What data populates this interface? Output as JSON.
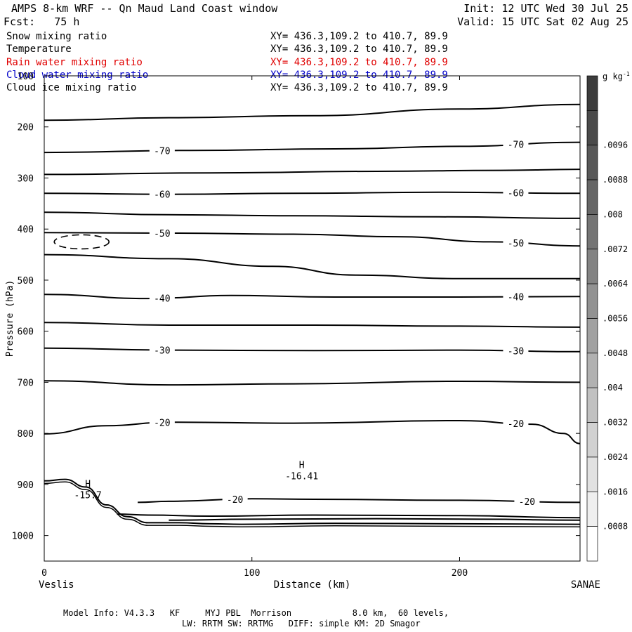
{
  "header": {
    "title": "AMPS 8-km WRF -- Qn Maud Land Coast window",
    "fcst": "Fcst:   75 h",
    "init": "Init: 12 UTC Wed 30 Jul 25",
    "valid": "Valid: 15 UTC Sat 02 Aug 25"
  },
  "fields": [
    {
      "name": "Snow mixing ratio",
      "xy": "XY= 436.3,109.2 to 410.7, 89.9",
      "color": "#000000"
    },
    {
      "name": "Temperature",
      "xy": "XY= 436.3,109.2 to 410.7, 89.9",
      "color": "#000000"
    },
    {
      "name": "Rain water mixing ratio",
      "xy": "XY= 436.3,109.2 to 410.7, 89.9",
      "color": "#e00000"
    },
    {
      "name": "Cloud water mixing ratio",
      "xy": "XY= 436.3,109.2 to 410.7, 89.9",
      "color": "#0000c8"
    },
    {
      "name": "Cloud ice mixing ratio",
      "xy": "XY= 436.3,109.2 to 410.7, 89.9",
      "color": "#000000"
    }
  ],
  "footer": {
    "line1": "Model Info: V4.3.3   KF     MYJ PBL  Morrison            8.0 km,  60 levels,",
    "line2": "LW: RRTM SW: RRTMG   DIFF: simple KM: 2D Smagor"
  },
  "chart_data": {
    "type": "contour",
    "xlabel": "Distance (km)",
    "ylabel": "Pressure (hPa)",
    "x_range": [
      0,
      258
    ],
    "y_range": [
      1050,
      100
    ],
    "x_ticks": [
      0,
      100,
      200
    ],
    "y_ticks": [
      100,
      200,
      300,
      400,
      500,
      600,
      700,
      800,
      900,
      1000
    ],
    "left_location": "Veslis",
    "right_location": "SANAE",
    "colorbar": {
      "unit": "g kg",
      "unit_exponent": "-1",
      "labels": [
        ".0096",
        ".0088",
        ".008",
        ".0072",
        ".0064",
        ".0056",
        ".0048",
        ".004",
        ".0032",
        ".0024",
        ".0016",
        ".0008"
      ],
      "colors": [
        "#3c3c3c",
        "#4a4a4a",
        "#585858",
        "#666666",
        "#747474",
        "#838383",
        "#929292",
        "#a1a1a1",
        "#b1b1b1",
        "#c1c1c1",
        "#d1d1d1",
        "#e1e1e1",
        "#efefef",
        "#ffffff"
      ]
    },
    "isotherms": [
      {
        "value": -75,
        "labeled": false,
        "points": [
          [
            0,
            187
          ],
          [
            60,
            182
          ],
          [
            130,
            178
          ],
          [
            200,
            165
          ],
          [
            258,
            156
          ]
        ]
      },
      {
        "value": -70,
        "labeled": true,
        "points": [
          [
            0,
            250
          ],
          [
            70,
            246
          ],
          [
            140,
            243
          ],
          [
            200,
            238
          ],
          [
            258,
            230
          ]
        ]
      },
      {
        "value": -65,
        "labeled": false,
        "points": [
          [
            0,
            293
          ],
          [
            80,
            290
          ],
          [
            160,
            287
          ],
          [
            220,
            285
          ],
          [
            258,
            283
          ]
        ]
      },
      {
        "value": -60,
        "labeled": true,
        "points": [
          [
            0,
            330
          ],
          [
            60,
            332
          ],
          [
            120,
            330
          ],
          [
            190,
            328
          ],
          [
            258,
            330
          ]
        ]
      },
      {
        "value": -55,
        "labeled": false,
        "points": [
          [
            0,
            367
          ],
          [
            60,
            372
          ],
          [
            120,
            374
          ],
          [
            190,
            376
          ],
          [
            258,
            379
          ]
        ]
      },
      {
        "value": -50,
        "labeled": true,
        "points": [
          [
            0,
            407
          ],
          [
            60,
            408
          ],
          [
            120,
            410
          ],
          [
            170,
            415
          ],
          [
            215,
            425
          ],
          [
            258,
            433
          ]
        ]
      },
      {
        "value": -45,
        "labeled": false,
        "points": [
          [
            0,
            450
          ],
          [
            60,
            458
          ],
          [
            110,
            473
          ],
          [
            150,
            490
          ],
          [
            200,
            497
          ],
          [
            258,
            497
          ]
        ]
      },
      {
        "value": -40,
        "labeled": true,
        "points": [
          [
            0,
            528
          ],
          [
            50,
            536
          ],
          [
            90,
            530
          ],
          [
            140,
            533
          ],
          [
            200,
            533
          ],
          [
            258,
            532
          ]
        ]
      },
      {
        "value": -35,
        "labeled": false,
        "points": [
          [
            0,
            583
          ],
          [
            60,
            588
          ],
          [
            130,
            588
          ],
          [
            200,
            590
          ],
          [
            258,
            592
          ]
        ]
      },
      {
        "value": -30,
        "labeled": true,
        "points": [
          [
            0,
            633
          ],
          [
            60,
            637
          ],
          [
            130,
            638
          ],
          [
            200,
            637
          ],
          [
            258,
            640
          ]
        ]
      },
      {
        "value": -25,
        "labeled": false,
        "points": [
          [
            0,
            697
          ],
          [
            60,
            705
          ],
          [
            120,
            703
          ],
          [
            200,
            698
          ],
          [
            258,
            700
          ]
        ]
      },
      {
        "value": -20,
        "labeled": true,
        "points": [
          [
            0,
            801
          ],
          [
            30,
            785
          ],
          [
            60,
            778
          ],
          [
            120,
            780
          ],
          [
            200,
            775
          ],
          [
            235,
            782
          ],
          [
            250,
            800
          ],
          [
            258,
            820
          ]
        ]
      },
      {
        "value": -20,
        "labeled": true,
        "points": [
          [
            45,
            935
          ],
          [
            60,
            933
          ],
          [
            100,
            928
          ],
          [
            130,
            929
          ],
          [
            200,
            931
          ],
          [
            258,
            935
          ]
        ]
      },
      {
        "value": -25,
        "labeled": false,
        "points": [
          [
            35,
            958
          ],
          [
            50,
            960
          ],
          [
            80,
            962
          ],
          [
            130,
            960
          ],
          [
            200,
            961
          ],
          [
            258,
            965
          ]
        ]
      },
      {
        "value": -30,
        "labeled": false,
        "points": [
          [
            60,
            970
          ],
          [
            100,
            968
          ],
          [
            160,
            967
          ],
          [
            210,
            968
          ],
          [
            258,
            970
          ]
        ]
      }
    ],
    "extrema": [
      {
        "type": "H",
        "value": "-16.41",
        "x": 124,
        "p": 868
      },
      {
        "type": "H",
        "value": "-15.7",
        "x": 21,
        "p": 905
      }
    ]
  }
}
